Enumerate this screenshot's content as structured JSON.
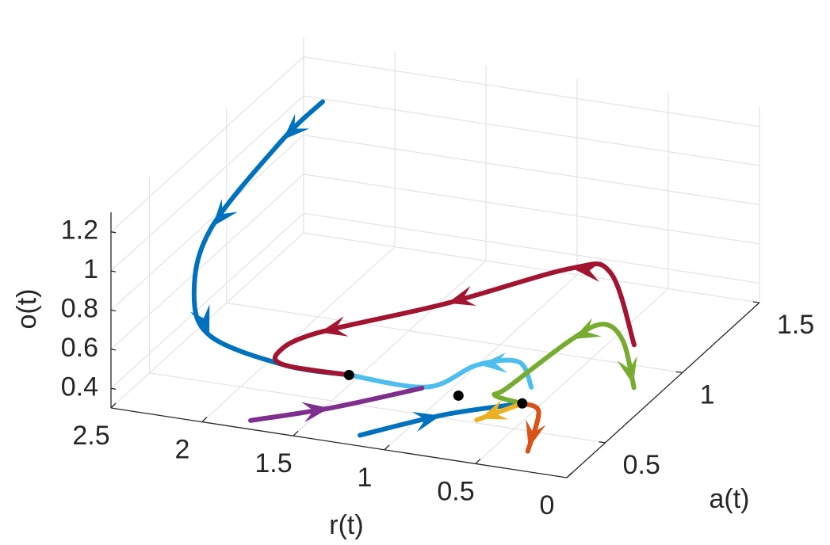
{
  "chart_data": {
    "type": "line3d",
    "xlabel": "r(t)",
    "ylabel": "a(t)",
    "zlabel": "o(t)",
    "xlim": [
      0,
      2.5
    ],
    "ylim": [
      0.25,
      1.5
    ],
    "zlim": [
      0.3,
      1.3
    ],
    "xticks": [
      0,
      0.5,
      1,
      1.5,
      2,
      2.5
    ],
    "yticks": [
      0.5,
      1,
      1.5
    ],
    "zticks": [
      0.4,
      0.6,
      0.8,
      1,
      1.2
    ],
    "grid": true,
    "series": [
      {
        "color": "#0072BD",
        "x": [
          2.29,
          2.31,
          2.34,
          2.22,
          2.06,
          1.65,
          1.3
        ],
        "y": [
          1.375,
          1.125,
          0.708,
          0.458,
          0.375,
          0.375,
          0.375
        ],
        "z": [
          1.09,
          1.06,
          0.91,
          0.78,
          0.64,
          0.55,
          0.55
        ]
      },
      {
        "color": "#A2142F",
        "x": [
          0.37,
          0.5,
          0.72,
          1.27,
          1.83,
          1.83,
          1.65,
          1.3
        ],
        "y": [
          1.125,
          1.125,
          1.125,
          0.958,
          0.792,
          0.542,
          0.375,
          0.375
        ],
        "z": [
          0.3,
          0.65,
          0.64,
          0.5,
          0.39,
          0.47,
          0.55,
          0.55
        ]
      },
      {
        "color": "#4DBEEE",
        "x": [
          0.3,
          0.37,
          0.6,
          0.87,
          1.3
        ],
        "y": [
          0.375,
          0.375,
          0.375,
          0.375,
          0.375
        ],
        "z": [
          0.63,
          0.75,
          0.7,
          0.55,
          0.55
        ]
      },
      {
        "color": "#7E2F8E",
        "x": [
          1.77,
          1.32,
          0.9
        ],
        "y": [
          0.292,
          0.292,
          0.375
        ],
        "z": [
          0.31,
          0.44,
          0.54
        ]
      },
      {
        "color": "#0072BD",
        "x": [
          1.17,
          0.71,
          0.35
        ],
        "y": [
          0.292,
          0.292,
          0.375
        ],
        "z": [
          0.32,
          0.49,
          0.54
        ]
      },
      {
        "color": "#77AC30",
        "x": [
          0.16,
          0.22,
          0.33,
          0.37,
          0.43,
          0.5,
          0.35
        ],
        "y": [
          0.875,
          0.875,
          0.875,
          0.708,
          0.375,
          0.375,
          0.375
        ],
        "z": [
          0.29,
          0.52,
          0.59,
          0.62,
          0.61,
          0.56,
          0.54
        ]
      },
      {
        "color": "#D95319",
        "x": [
          0.35,
          0.26,
          0.32
        ],
        "y": [
          0.375,
          0.375,
          0.375
        ],
        "z": [
          0.54,
          0.51,
          0.3
        ]
      },
      {
        "color": "#EDB120",
        "x": [
          0.35,
          0.6
        ],
        "y": [
          0.375,
          0.375
        ],
        "z": [
          0.54,
          0.42
        ]
      }
    ],
    "points": {
      "color": "#000000",
      "x": [
        1.3,
        0.7,
        0.35
      ],
      "y": [
        0.375,
        0.375,
        0.375
      ],
      "z": [
        0.55,
        0.53,
        0.54
      ]
    }
  }
}
